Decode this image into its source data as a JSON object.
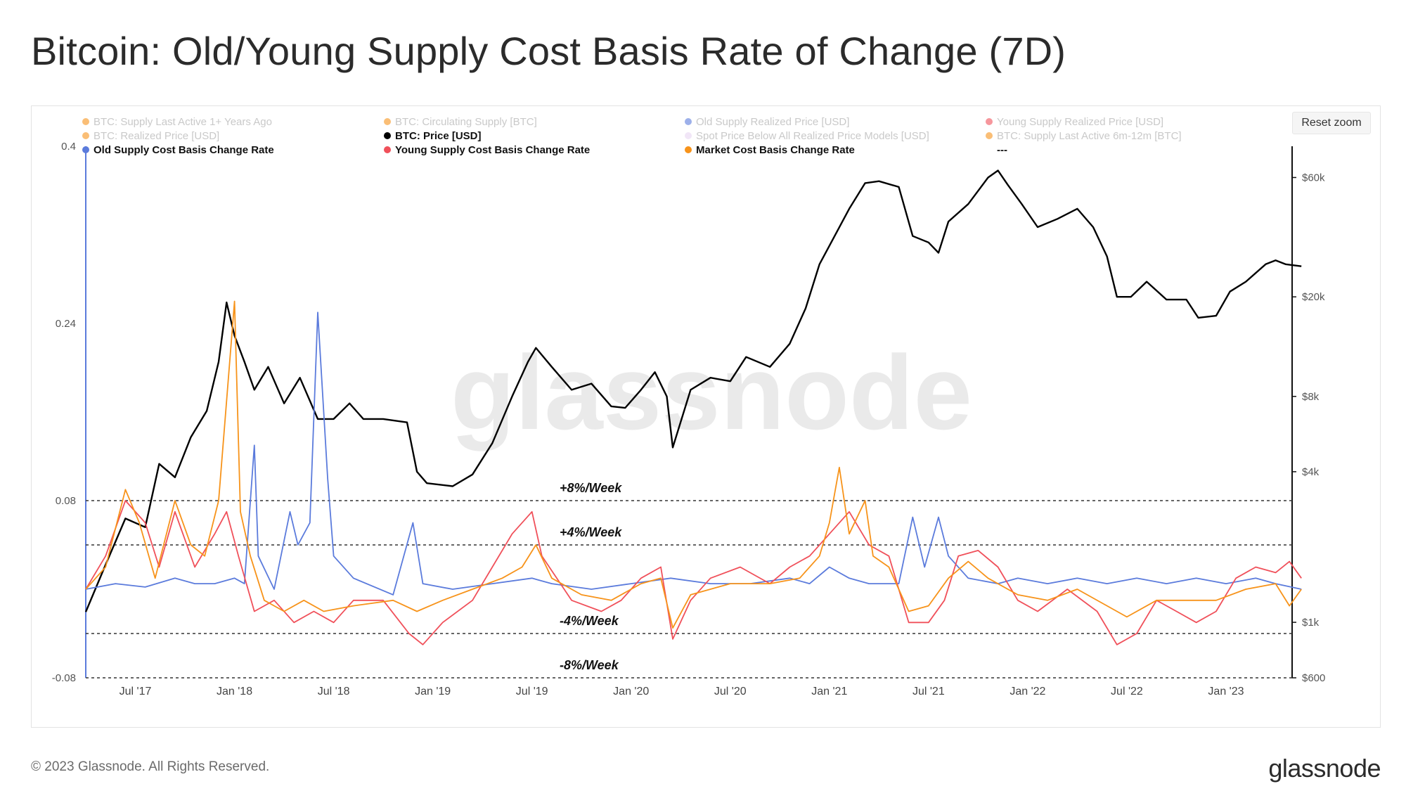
{
  "title": "Bitcoin: Old/Young Supply Cost Basis Rate of Change (7D)",
  "reset_zoom_label": "Reset zoom",
  "watermark": "glassnode",
  "footer": {
    "copyright": "© 2023 Glassnode. All Rights Reserved.",
    "logo": "glassnode"
  },
  "legend": [
    {
      "label": "BTC: Supply Last Active 1+ Years Ago",
      "color": "#f7931a",
      "active": false
    },
    {
      "label": "BTC: Circulating Supply [BTC]",
      "color": "#f7931a",
      "active": false
    },
    {
      "label": "Old Supply Realized Price [USD]",
      "color": "#5b7bdc",
      "active": false
    },
    {
      "label": "Young Supply Realized Price [USD]",
      "color": "#f0505a",
      "active": false
    },
    {
      "label": "BTC: Realized Price [USD]",
      "color": "#f7931a",
      "active": false
    },
    {
      "label": "BTC: Price [USD]",
      "color": "#000000",
      "active": true
    },
    {
      "label": "Spot Price Below All Realized Price Models [USD]",
      "color": "#e8d6f2",
      "active": false
    },
    {
      "label": "BTC: Supply Last Active 6m-12m [BTC]",
      "color": "#f7931a",
      "active": false
    },
    {
      "label": "Old Supply Cost Basis Change Rate",
      "color": "#5b7bdc",
      "active": true
    },
    {
      "label": "Young Supply Cost Basis Change Rate",
      "color": "#f0505a",
      "active": true
    },
    {
      "label": "Market Cost Basis Change Rate",
      "color": "#f7931a",
      "active": true
    },
    {
      "label": "---",
      "color": null,
      "active": true
    }
  ],
  "chart_data": {
    "type": "line",
    "title": "Bitcoin: Old/Young Supply Cost Basis Rate of Change (7D)",
    "x_range": [
      "2017-04",
      "2023-05"
    ],
    "x_ticks": [
      "Jul '17",
      "Jan '18",
      "Jul '18",
      "Jan '19",
      "Jul '19",
      "Jan '20",
      "Jul '20",
      "Jan '21",
      "Jul '21",
      "Jan '22",
      "Jul '22",
      "Jan '23"
    ],
    "y_left": {
      "ylim": [
        -0.08,
        0.4
      ],
      "ticks": [
        "0.4",
        "0.24",
        "0.08",
        "-0.08"
      ]
    },
    "y_right": {
      "scale": "log",
      "ylim": [
        600,
        80000
      ],
      "ticks": [
        "$60k",
        "$20k",
        "$8k",
        "$4k",
        "$1k",
        "$600"
      ]
    },
    "reference_lines": [
      {
        "value": 0.08,
        "label": "+8%/Week"
      },
      {
        "value": 0.04,
        "label": "+4%/Week"
      },
      {
        "value": -0.04,
        "label": "-4%/Week"
      },
      {
        "value": -0.08,
        "label": "-8%/Week"
      }
    ],
    "series": [
      {
        "name": "BTC: Price [USD]",
        "axis": "right",
        "color": "#000000",
        "points": [
          [
            2017.25,
            1100
          ],
          [
            2017.35,
            1700
          ],
          [
            2017.45,
            2600
          ],
          [
            2017.55,
            2400
          ],
          [
            2017.62,
            4300
          ],
          [
            2017.7,
            3800
          ],
          [
            2017.78,
            5500
          ],
          [
            2017.86,
            7000
          ],
          [
            2017.92,
            11000
          ],
          [
            2017.96,
            19000
          ],
          [
            2018.0,
            14000
          ],
          [
            2018.05,
            11000
          ],
          [
            2018.1,
            8500
          ],
          [
            2018.17,
            10500
          ],
          [
            2018.25,
            7500
          ],
          [
            2018.33,
            9500
          ],
          [
            2018.42,
            6500
          ],
          [
            2018.5,
            6500
          ],
          [
            2018.58,
            7500
          ],
          [
            2018.65,
            6500
          ],
          [
            2018.75,
            6500
          ],
          [
            2018.87,
            6300
          ],
          [
            2018.92,
            4000
          ],
          [
            2018.97,
            3600
          ],
          [
            2019.1,
            3500
          ],
          [
            2019.2,
            3900
          ],
          [
            2019.3,
            5200
          ],
          [
            2019.4,
            8000
          ],
          [
            2019.48,
            11000
          ],
          [
            2019.52,
            12500
          ],
          [
            2019.6,
            10500
          ],
          [
            2019.7,
            8500
          ],
          [
            2019.8,
            9000
          ],
          [
            2019.9,
            7300
          ],
          [
            2019.97,
            7200
          ],
          [
            2020.05,
            8500
          ],
          [
            2020.12,
            10000
          ],
          [
            2020.18,
            8000
          ],
          [
            2020.21,
            5000
          ],
          [
            2020.3,
            8500
          ],
          [
            2020.4,
            9500
          ],
          [
            2020.5,
            9200
          ],
          [
            2020.58,
            11500
          ],
          [
            2020.7,
            10500
          ],
          [
            2020.8,
            13000
          ],
          [
            2020.88,
            18000
          ],
          [
            2020.95,
            27000
          ],
          [
            2021.0,
            32000
          ],
          [
            2021.1,
            45000
          ],
          [
            2021.18,
            57000
          ],
          [
            2021.25,
            58000
          ],
          [
            2021.35,
            55000
          ],
          [
            2021.42,
            35000
          ],
          [
            2021.5,
            33000
          ],
          [
            2021.55,
            30000
          ],
          [
            2021.6,
            40000
          ],
          [
            2021.7,
            47000
          ],
          [
            2021.8,
            60000
          ],
          [
            2021.85,
            64000
          ],
          [
            2021.9,
            56000
          ],
          [
            2021.97,
            47000
          ],
          [
            2022.05,
            38000
          ],
          [
            2022.15,
            41000
          ],
          [
            2022.25,
            45000
          ],
          [
            2022.33,
            38000
          ],
          [
            2022.4,
            29000
          ],
          [
            2022.45,
            20000
          ],
          [
            2022.52,
            20000
          ],
          [
            2022.6,
            23000
          ],
          [
            2022.7,
            19500
          ],
          [
            2022.8,
            19500
          ],
          [
            2022.86,
            16500
          ],
          [
            2022.95,
            16800
          ],
          [
            2023.02,
            21000
          ],
          [
            2023.1,
            23000
          ],
          [
            2023.2,
            27000
          ],
          [
            2023.25,
            28000
          ],
          [
            2023.3,
            27000
          ],
          [
            2023.38,
            26500
          ]
        ]
      },
      {
        "name": "Old Supply Cost Basis Change Rate",
        "axis": "left",
        "color": "#5b7bdc",
        "points": [
          [
            2017.25,
            0.0
          ],
          [
            2017.4,
            0.005
          ],
          [
            2017.55,
            0.002
          ],
          [
            2017.7,
            0.01
          ],
          [
            2017.8,
            0.005
          ],
          [
            2017.9,
            0.005
          ],
          [
            2018.0,
            0.01
          ],
          [
            2018.05,
            0.005
          ],
          [
            2018.1,
            0.13
          ],
          [
            2018.12,
            0.03
          ],
          [
            2018.2,
            0.0
          ],
          [
            2018.28,
            0.07
          ],
          [
            2018.32,
            0.04
          ],
          [
            2018.38,
            0.06
          ],
          [
            2018.42,
            0.25
          ],
          [
            2018.47,
            0.1
          ],
          [
            2018.5,
            0.03
          ],
          [
            2018.6,
            0.01
          ],
          [
            2018.8,
            -0.005
          ],
          [
            2018.9,
            0.06
          ],
          [
            2018.95,
            0.005
          ],
          [
            2019.1,
            0.0
          ],
          [
            2019.3,
            0.005
          ],
          [
            2019.5,
            0.01
          ],
          [
            2019.6,
            0.005
          ],
          [
            2019.8,
            0.0
          ],
          [
            2020.0,
            0.005
          ],
          [
            2020.2,
            0.01
          ],
          [
            2020.4,
            0.005
          ],
          [
            2020.6,
            0.005
          ],
          [
            2020.8,
            0.01
          ],
          [
            2020.9,
            0.005
          ],
          [
            2021.0,
            0.02
          ],
          [
            2021.1,
            0.01
          ],
          [
            2021.2,
            0.005
          ],
          [
            2021.35,
            0.005
          ],
          [
            2021.42,
            0.065
          ],
          [
            2021.48,
            0.02
          ],
          [
            2021.55,
            0.065
          ],
          [
            2021.6,
            0.03
          ],
          [
            2021.7,
            0.01
          ],
          [
            2021.85,
            0.005
          ],
          [
            2021.95,
            0.01
          ],
          [
            2022.1,
            0.005
          ],
          [
            2022.25,
            0.01
          ],
          [
            2022.4,
            0.005
          ],
          [
            2022.55,
            0.01
          ],
          [
            2022.7,
            0.005
          ],
          [
            2022.85,
            0.01
          ],
          [
            2023.0,
            0.005
          ],
          [
            2023.15,
            0.01
          ],
          [
            2023.25,
            0.005
          ],
          [
            2023.38,
            0.0
          ]
        ]
      },
      {
        "name": "Young Supply Cost Basis Change Rate",
        "axis": "left",
        "color": "#f0505a",
        "points": [
          [
            2017.25,
            0.0
          ],
          [
            2017.35,
            0.03
          ],
          [
            2017.45,
            0.08
          ],
          [
            2017.55,
            0.06
          ],
          [
            2017.62,
            0.02
          ],
          [
            2017.7,
            0.07
          ],
          [
            2017.8,
            0.02
          ],
          [
            2017.9,
            0.05
          ],
          [
            2017.96,
            0.07
          ],
          [
            2018.02,
            0.03
          ],
          [
            2018.1,
            -0.02
          ],
          [
            2018.2,
            -0.01
          ],
          [
            2018.3,
            -0.03
          ],
          [
            2018.4,
            -0.02
          ],
          [
            2018.5,
            -0.03
          ],
          [
            2018.6,
            -0.01
          ],
          [
            2018.75,
            -0.01
          ],
          [
            2018.88,
            -0.04
          ],
          [
            2018.95,
            -0.05
          ],
          [
            2019.05,
            -0.03
          ],
          [
            2019.2,
            -0.01
          ],
          [
            2019.3,
            0.02
          ],
          [
            2019.4,
            0.05
          ],
          [
            2019.5,
            0.07
          ],
          [
            2019.55,
            0.03
          ],
          [
            2019.7,
            -0.01
          ],
          [
            2019.85,
            -0.02
          ],
          [
            2019.95,
            -0.01
          ],
          [
            2020.05,
            0.01
          ],
          [
            2020.15,
            0.02
          ],
          [
            2020.21,
            -0.045
          ],
          [
            2020.3,
            -0.01
          ],
          [
            2020.4,
            0.01
          ],
          [
            2020.55,
            0.02
          ],
          [
            2020.7,
            0.005
          ],
          [
            2020.8,
            0.02
          ],
          [
            2020.9,
            0.03
          ],
          [
            2021.0,
            0.05
          ],
          [
            2021.1,
            0.07
          ],
          [
            2021.2,
            0.04
          ],
          [
            2021.3,
            0.03
          ],
          [
            2021.4,
            -0.03
          ],
          [
            2021.5,
            -0.03
          ],
          [
            2021.58,
            -0.01
          ],
          [
            2021.65,
            0.03
          ],
          [
            2021.75,
            0.035
          ],
          [
            2021.85,
            0.02
          ],
          [
            2021.95,
            -0.01
          ],
          [
            2022.05,
            -0.02
          ],
          [
            2022.2,
            0.0
          ],
          [
            2022.35,
            -0.02
          ],
          [
            2022.45,
            -0.05
          ],
          [
            2022.55,
            -0.04
          ],
          [
            2022.65,
            -0.01
          ],
          [
            2022.75,
            -0.02
          ],
          [
            2022.85,
            -0.03
          ],
          [
            2022.95,
            -0.02
          ],
          [
            2023.05,
            0.01
          ],
          [
            2023.15,
            0.02
          ],
          [
            2023.25,
            0.015
          ],
          [
            2023.32,
            0.025
          ],
          [
            2023.38,
            0.01
          ]
        ]
      },
      {
        "name": "Market Cost Basis Change Rate",
        "axis": "left",
        "color": "#f7931a",
        "points": [
          [
            2017.25,
            0.0
          ],
          [
            2017.35,
            0.02
          ],
          [
            2017.45,
            0.09
          ],
          [
            2017.52,
            0.06
          ],
          [
            2017.6,
            0.01
          ],
          [
            2017.7,
            0.08
          ],
          [
            2017.78,
            0.04
          ],
          [
            2017.85,
            0.03
          ],
          [
            2017.92,
            0.08
          ],
          [
            2017.96,
            0.17
          ],
          [
            2018.0,
            0.26
          ],
          [
            2018.03,
            0.07
          ],
          [
            2018.08,
            0.03
          ],
          [
            2018.15,
            -0.01
          ],
          [
            2018.25,
            -0.02
          ],
          [
            2018.35,
            -0.01
          ],
          [
            2018.45,
            -0.02
          ],
          [
            2018.6,
            -0.015
          ],
          [
            2018.8,
            -0.01
          ],
          [
            2018.92,
            -0.02
          ],
          [
            2019.05,
            -0.01
          ],
          [
            2019.2,
            0.0
          ],
          [
            2019.35,
            0.01
          ],
          [
            2019.45,
            0.02
          ],
          [
            2019.52,
            0.04
          ],
          [
            2019.6,
            0.01
          ],
          [
            2019.75,
            -0.005
          ],
          [
            2019.9,
            -0.01
          ],
          [
            2020.05,
            0.005
          ],
          [
            2020.15,
            0.01
          ],
          [
            2020.21,
            -0.035
          ],
          [
            2020.3,
            -0.005
          ],
          [
            2020.5,
            0.005
          ],
          [
            2020.7,
            0.005
          ],
          [
            2020.85,
            0.01
          ],
          [
            2020.95,
            0.03
          ],
          [
            2021.0,
            0.06
          ],
          [
            2021.05,
            0.11
          ],
          [
            2021.1,
            0.05
          ],
          [
            2021.18,
            0.08
          ],
          [
            2021.22,
            0.03
          ],
          [
            2021.3,
            0.02
          ],
          [
            2021.4,
            -0.02
          ],
          [
            2021.5,
            -0.015
          ],
          [
            2021.6,
            0.01
          ],
          [
            2021.7,
            0.025
          ],
          [
            2021.8,
            0.01
          ],
          [
            2021.95,
            -0.005
          ],
          [
            2022.1,
            -0.01
          ],
          [
            2022.25,
            0.0
          ],
          [
            2022.4,
            -0.015
          ],
          [
            2022.5,
            -0.025
          ],
          [
            2022.65,
            -0.01
          ],
          [
            2022.8,
            -0.01
          ],
          [
            2022.95,
            -0.01
          ],
          [
            2023.1,
            0.0
          ],
          [
            2023.25,
            0.005
          ],
          [
            2023.32,
            -0.015
          ],
          [
            2023.38,
            0.0
          ]
        ]
      }
    ]
  }
}
